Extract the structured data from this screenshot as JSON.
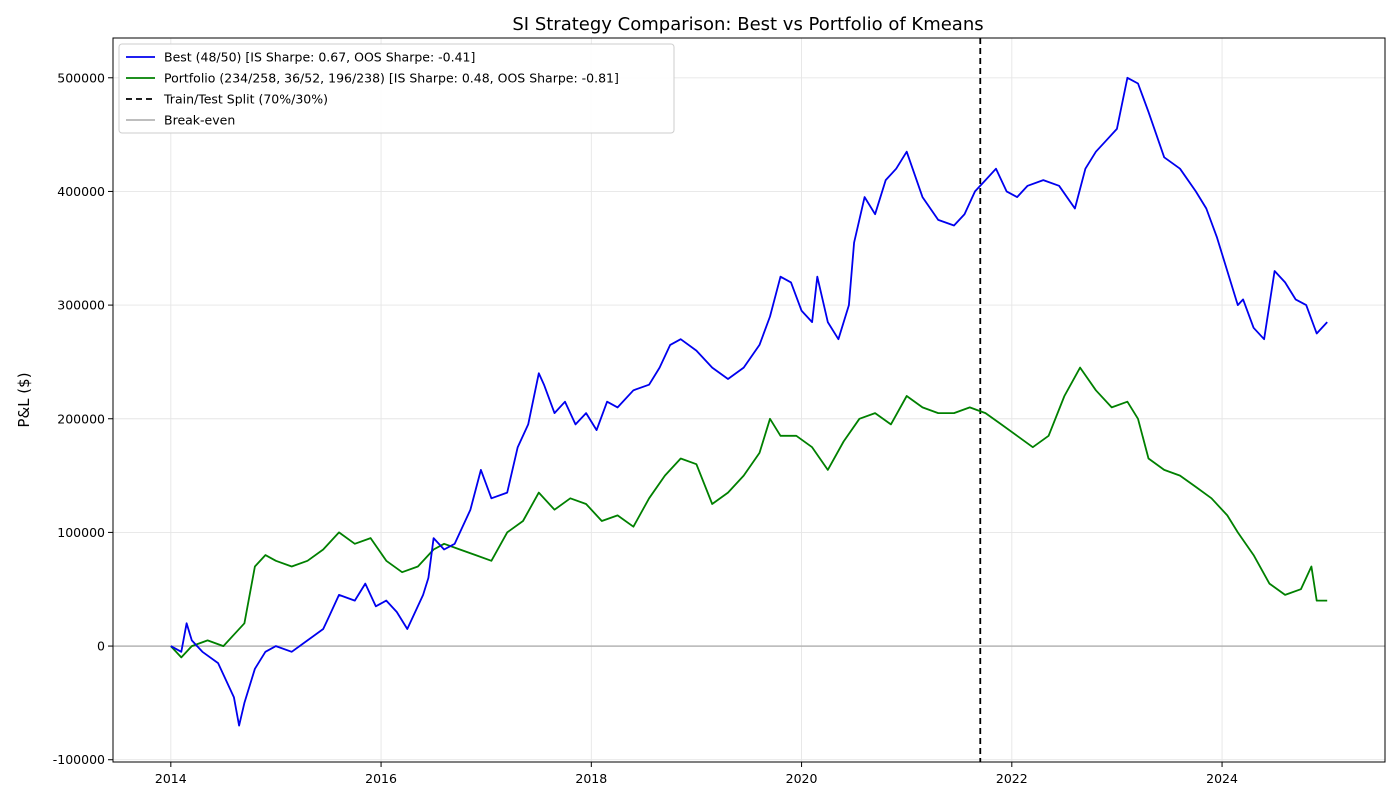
{
  "chart_data": {
    "type": "line",
    "title": "SI Strategy Comparison: Best vs Portfolio of Kmeans",
    "xlabel": "",
    "ylabel": "P&L ($)",
    "xlim": [
      2013.45,
      2025.55
    ],
    "ylim": [
      -102000,
      535000
    ],
    "x_ticks": [
      2014,
      2016,
      2018,
      2020,
      2022,
      2024
    ],
    "y_ticks": [
      -100000,
      0,
      100000,
      200000,
      300000,
      400000,
      500000
    ],
    "grid": true,
    "legend_position": "top-left",
    "split_x": 2021.7,
    "break_even_y": 0,
    "series": [
      {
        "name": "Best (48/50) [IS Sharpe: 0.67, OOS Sharpe: -0.41]",
        "color": "#0000ee",
        "x": [
          2014.0,
          2014.1,
          2014.15,
          2014.2,
          2014.3,
          2014.45,
          2014.6,
          2014.65,
          2014.7,
          2014.8,
          2014.9,
          2015.0,
          2015.15,
          2015.3,
          2015.45,
          2015.5,
          2015.6,
          2015.75,
          2015.85,
          2015.95,
          2016.05,
          2016.15,
          2016.25,
          2016.4,
          2016.45,
          2016.5,
          2016.6,
          2016.7,
          2016.85,
          2016.95,
          2017.05,
          2017.2,
          2017.3,
          2017.4,
          2017.5,
          2017.55,
          2017.65,
          2017.75,
          2017.85,
          2017.95,
          2018.05,
          2018.15,
          2018.25,
          2018.4,
          2018.55,
          2018.65,
          2018.75,
          2018.85,
          2019.0,
          2019.15,
          2019.3,
          2019.45,
          2019.6,
          2019.7,
          2019.8,
          2019.9,
          2020.0,
          2020.1,
          2020.15,
          2020.25,
          2020.35,
          2020.45,
          2020.5,
          2020.6,
          2020.7,
          2020.8,
          2020.9,
          2021.0,
          2021.15,
          2021.3,
          2021.45,
          2021.55,
          2021.65,
          2021.75,
          2021.85,
          2021.95,
          2022.05,
          2022.15,
          2022.3,
          2022.45,
          2022.6,
          2022.7,
          2022.8,
          2022.9,
          2023.0,
          2023.1,
          2023.2,
          2023.3,
          2023.45,
          2023.6,
          2023.75,
          2023.85,
          2023.95,
          2024.05,
          2024.15,
          2024.2,
          2024.3,
          2024.4,
          2024.5,
          2024.6,
          2024.7,
          2024.8,
          2024.9,
          2025.0
        ],
        "y": [
          0,
          -5000,
          20000,
          5000,
          -5000,
          -15000,
          -45000,
          -70000,
          -50000,
          -20000,
          -5000,
          0,
          -5000,
          5000,
          15000,
          25000,
          45000,
          40000,
          55000,
          35000,
          40000,
          30000,
          15000,
          45000,
          60000,
          95000,
          85000,
          90000,
          120000,
          155000,
          130000,
          135000,
          175000,
          195000,
          240000,
          230000,
          205000,
          215000,
          195000,
          205000,
          190000,
          215000,
          210000,
          225000,
          230000,
          245000,
          265000,
          270000,
          260000,
          245000,
          235000,
          245000,
          265000,
          290000,
          325000,
          320000,
          295000,
          285000,
          325000,
          285000,
          270000,
          300000,
          355000,
          395000,
          380000,
          410000,
          420000,
          435000,
          395000,
          375000,
          370000,
          380000,
          400000,
          410000,
          420000,
          400000,
          395000,
          405000,
          410000,
          405000,
          385000,
          420000,
          435000,
          445000,
          455000,
          500000,
          495000,
          470000,
          430000,
          420000,
          400000,
          385000,
          360000,
          330000,
          300000,
          305000,
          280000,
          270000,
          330000,
          320000,
          305000,
          300000,
          275000,
          285000
        ]
      },
      {
        "name": "Portfolio (234/258, 36/52, 196/238) [IS Sharpe: 0.48, OOS Sharpe: -0.81]",
        "color": "#008000",
        "x": [
          2014.0,
          2014.1,
          2014.2,
          2014.35,
          2014.5,
          2014.6,
          2014.7,
          2014.8,
          2014.9,
          2015.0,
          2015.15,
          2015.3,
          2015.45,
          2015.6,
          2015.75,
          2015.9,
          2016.05,
          2016.2,
          2016.35,
          2016.5,
          2016.6,
          2016.75,
          2016.9,
          2017.05,
          2017.2,
          2017.35,
          2017.5,
          2017.65,
          2017.8,
          2017.95,
          2018.1,
          2018.25,
          2018.4,
          2018.55,
          2018.7,
          2018.85,
          2019.0,
          2019.15,
          2019.3,
          2019.45,
          2019.6,
          2019.7,
          2019.8,
          2019.95,
          2020.1,
          2020.25,
          2020.4,
          2020.55,
          2020.7,
          2020.85,
          2021.0,
          2021.15,
          2021.3,
          2021.45,
          2021.6,
          2021.75,
          2021.9,
          2022.05,
          2022.2,
          2022.35,
          2022.5,
          2022.65,
          2022.8,
          2022.95,
          2023.1,
          2023.2,
          2023.3,
          2023.45,
          2023.6,
          2023.75,
          2023.9,
          2024.05,
          2024.15,
          2024.3,
          2024.45,
          2024.6,
          2024.75,
          2024.85,
          2024.9,
          2025.0
        ],
        "y": [
          0,
          -10000,
          0,
          5000,
          0,
          10000,
          20000,
          70000,
          80000,
          75000,
          70000,
          75000,
          85000,
          100000,
          90000,
          95000,
          75000,
          65000,
          70000,
          85000,
          90000,
          85000,
          80000,
          75000,
          100000,
          110000,
          135000,
          120000,
          130000,
          125000,
          110000,
          115000,
          105000,
          130000,
          150000,
          165000,
          160000,
          125000,
          135000,
          150000,
          170000,
          200000,
          185000,
          185000,
          175000,
          155000,
          180000,
          200000,
          205000,
          195000,
          220000,
          210000,
          205000,
          205000,
          210000,
          205000,
          195000,
          185000,
          175000,
          185000,
          220000,
          245000,
          225000,
          210000,
          215000,
          200000,
          165000,
          155000,
          150000,
          140000,
          130000,
          115000,
          100000,
          80000,
          55000,
          45000,
          50000,
          70000,
          40000,
          40000
        ]
      },
      {
        "name": "Train/Test Split (70%/30%)",
        "color": "#000000"
      },
      {
        "name": "Break-even",
        "color": "#b4b4b4"
      }
    ]
  }
}
